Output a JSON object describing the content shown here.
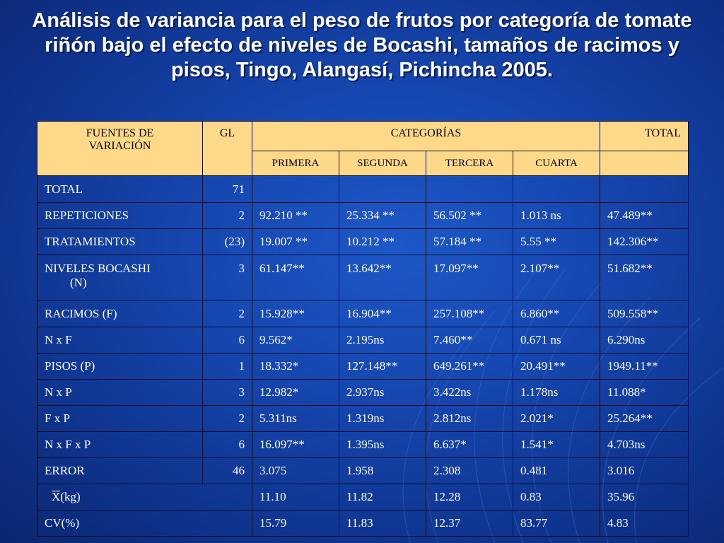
{
  "title": "Análisis de variancia para el peso de frutos por categoría de tomate riñón  bajo el efecto de niveles de Bocashi, tamaños de racimos y pisos, Tingo, Alangasí, Pichincha 2005.",
  "header": {
    "fuentes": "FUENTES DE VARIACIÓN",
    "gl": "GL",
    "categorias": "CATEGORÍAS",
    "total": "TOTAL",
    "primera": "PRIMERA",
    "segunda": "SEGUNDA",
    "tercera": "TERCERA",
    "cuarta": "CUARTA"
  },
  "rows": [
    {
      "fuente": "TOTAL",
      "gl": "71",
      "primera": "",
      "segunda": "",
      "tercera": "",
      "cuarta": "",
      "total": ""
    },
    {
      "fuente": "REPETICIONES",
      "gl": "2",
      "primera": "92.210 **",
      "segunda": "25.334 **",
      "tercera": "56.502 **",
      "cuarta": "1.013 ns",
      "total": "47.489**"
    },
    {
      "fuente": "TRATAMIENTOS",
      "gl": "(23)",
      "primera": "19.007 **",
      "segunda": "10.212 **",
      "tercera": "57.184 **",
      "cuarta": "5.55 **",
      "total": "142.306**"
    },
    {
      "fuente": "NIVELES BOCASHI",
      "fuente2": "(N)",
      "gl": "3",
      "primera": "61.147**",
      "segunda": "13.642**",
      "tercera": "17.097**",
      "cuarta": "2.107**",
      "total": "51.682**"
    },
    {
      "fuente": "RACIMOS (F)",
      "gl": "2",
      "primera": "15.928**",
      "segunda": "16.904**",
      "tercera": "257.108**",
      "cuarta": "6.860**",
      "total": "509.558**"
    },
    {
      "fuente": "N x F",
      "gl": "6",
      "primera": "9.562*",
      "segunda": "2.195ns",
      "tercera": "7.460**",
      "cuarta": "0.671 ns",
      "total": "6.290ns"
    },
    {
      "fuente": "PISOS (P)",
      "gl": "1",
      "primera": "18.332*",
      "segunda": "127.148**",
      "tercera": "649.261**",
      "cuarta": "20.491**",
      "total": "1949.11**"
    },
    {
      "fuente": "N x P",
      "gl": "3",
      "primera": "12.982*",
      "segunda": "2.937ns",
      "tercera": "3.422ns",
      "cuarta": "1.178ns",
      "total": "11.088*"
    },
    {
      "fuente": "F x P",
      "gl": "2",
      "primera": "5.311ns",
      "segunda": "1.319ns",
      "tercera": "2.812ns",
      "cuarta": "2.021*",
      "total": "25.264**"
    },
    {
      "fuente": "N x F x P",
      "gl": "6",
      "primera": "16.097**",
      "segunda": "1.395ns",
      "tercera": "6.637*",
      "cuarta": "1.541*",
      "total": "4.703ns"
    },
    {
      "fuente": "ERROR",
      "gl": "46",
      "primera": "3.075",
      "segunda": "1.958",
      "tercera": "2.308",
      "cuarta": "0.481",
      "total": "3.016"
    }
  ],
  "mean_row": {
    "symbol": "X",
    "unit": "(kg)",
    "primera": "11.10",
    "segunda": "11.82",
    "tercera": "12.28",
    "cuarta": "0.83",
    "total": "35.96"
  },
  "cv_row": {
    "label": "CV(%)",
    "primera": "15.79",
    "segunda": "11.83",
    "tercera": "12.37",
    "cuarta": "83.77",
    "total": "4.83"
  },
  "colors": {
    "header_bg": "#ffd98a",
    "background": "#1647b0",
    "text": "#ffffff"
  }
}
